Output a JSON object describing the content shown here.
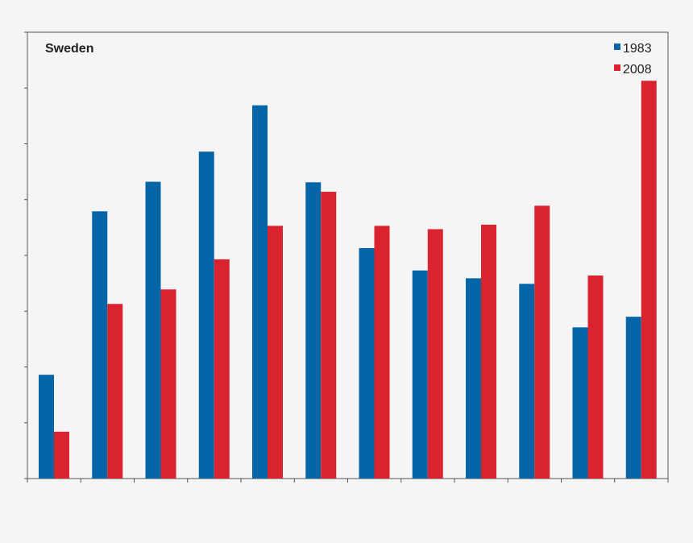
{
  "chart_data": {
    "type": "bar",
    "title": "Sweden",
    "xlabel": "",
    "ylabel": "",
    "categories": [
      "",
      "",
      "",
      "",
      "",
      "",
      "",
      "",
      "",
      "",
      "",
      ""
    ],
    "ylim": [
      0,
      8
    ],
    "series": [
      {
        "name": "1983",
        "color": "#0565a6",
        "values": [
          1.86,
          4.79,
          5.32,
          5.86,
          6.69,
          5.31,
          4.13,
          3.73,
          3.59,
          3.49,
          2.71,
          2.9
        ]
      },
      {
        "name": "2008",
        "color": "#d9232e",
        "values": [
          0.84,
          3.13,
          3.39,
          3.93,
          4.53,
          5.14,
          4.53,
          4.47,
          4.55,
          4.89,
          3.64,
          7.13
        ]
      }
    ],
    "grid": false,
    "legend": "top-right"
  }
}
